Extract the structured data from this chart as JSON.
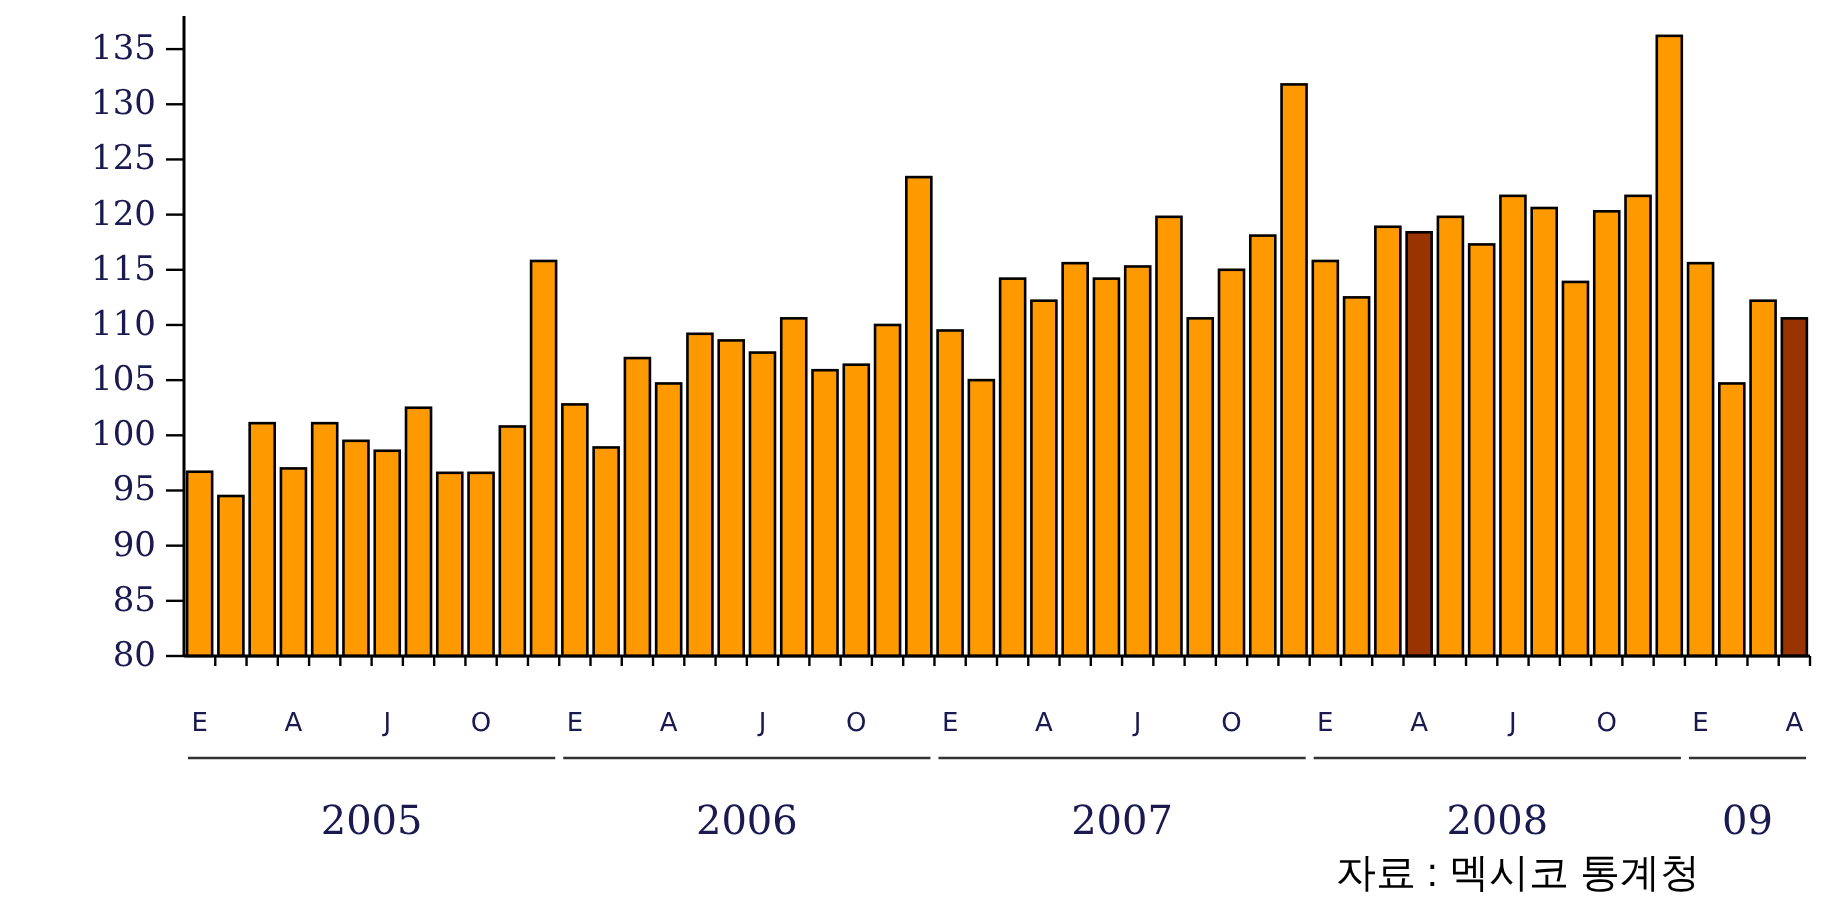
{
  "chart_data": {
    "type": "bar",
    "categories": [
      "E",
      null,
      null,
      "A",
      null,
      null,
      "J",
      null,
      null,
      "O",
      null,
      null,
      "E",
      null,
      null,
      "A",
      null,
      null,
      "J",
      null,
      null,
      "O",
      null,
      null,
      "E",
      null,
      null,
      "A",
      null,
      null,
      "J",
      null,
      null,
      "O",
      null,
      null,
      "E",
      null,
      null,
      "A",
      null,
      null,
      "J",
      null,
      null,
      "O",
      null,
      null,
      "E",
      null,
      null,
      "A"
    ],
    "values": [
      96.7,
      94.5,
      101.1,
      97.0,
      101.1,
      99.5,
      98.6,
      102.5,
      96.6,
      96.6,
      100.8,
      115.8,
      102.8,
      98.9,
      107.0,
      104.7,
      109.2,
      108.6,
      107.5,
      110.6,
      105.9,
      106.4,
      110.0,
      123.4,
      109.5,
      105.0,
      114.2,
      112.2,
      115.6,
      114.2,
      115.3,
      119.8,
      110.6,
      115.0,
      118.1,
      131.8,
      115.8,
      112.5,
      118.9,
      118.4,
      119.8,
      117.3,
      121.7,
      120.6,
      113.9,
      120.3,
      121.7,
      136.2,
      115.6,
      104.7,
      112.2,
      110.6
    ],
    "colors": [
      "#ff9900",
      "#ff9900",
      "#ff9900",
      "#ff9900",
      "#ff9900",
      "#ff9900",
      "#ff9900",
      "#ff9900",
      "#ff9900",
      "#ff9900",
      "#ff9900",
      "#ff9900",
      "#ff9900",
      "#ff9900",
      "#ff9900",
      "#ff9900",
      "#ff9900",
      "#ff9900",
      "#ff9900",
      "#ff9900",
      "#ff9900",
      "#ff9900",
      "#ff9900",
      "#ff9900",
      "#ff9900",
      "#ff9900",
      "#ff9900",
      "#ff9900",
      "#ff9900",
      "#ff9900",
      "#ff9900",
      "#ff9900",
      "#ff9900",
      "#ff9900",
      "#ff9900",
      "#ff9900",
      "#ff9900",
      "#ff9900",
      "#ff9900",
      "#993300",
      "#ff9900",
      "#ff9900",
      "#ff9900",
      "#ff9900",
      "#ff9900",
      "#ff9900",
      "#ff9900",
      "#ff9900",
      "#ff9900",
      "#ff9900",
      "#ff9900",
      "#993300"
    ],
    "ylim": [
      80,
      138
    ],
    "yticks": [
      80,
      85,
      90,
      95,
      100,
      105,
      110,
      115,
      120,
      125,
      130,
      135
    ],
    "annotations": [
      "2005",
      "2006",
      "2007",
      "2008",
      "09",
      "자료 : 멕시코 통계청"
    ]
  }
}
